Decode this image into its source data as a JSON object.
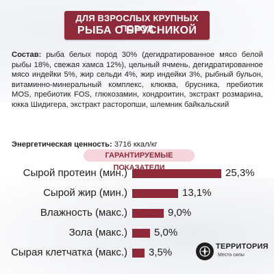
{
  "title": {
    "line1": "Для взрослых крупных пород",
    "line2": "Рыба с брусникой"
  },
  "composition": {
    "label": "Состав:",
    "text": "рыба белых пород 30% (дегидратированное мясо белой рыбы 18%, свежая хамса 12%), цельный ячмень, дегидратированное мясо индейки 5%, жир сельди 4%, жир индейки 3%, рыбный бульон, витаминно-минеральный комплекс, клюква, брусника, пребиотик MOS, пребиотик FOS, глюкозамин, хондроитин, экстракт розмарина, юкка Шидигера, экстракт расторопши, шлемник байкальский"
  },
  "energy": {
    "label": "Энергетическая ценность:",
    "value": "3716 ккал/кг"
  },
  "section_header": "Гарантируемые показатели",
  "indicators": [
    {
      "label": "Сырой протеин (мин.)",
      "value": "25,3%",
      "percent": 25.3
    },
    {
      "label": "Сырой жир (мин.)",
      "value": "13,1%",
      "percent": 13.1
    },
    {
      "label": "Влажность (макс.)",
      "value": "9,0%",
      "percent": 9.0
    },
    {
      "label": "Зола (макс.)",
      "value": "5,0%",
      "percent": 5.0
    },
    {
      "label": "Сырая клетчатка (макс.)",
      "value": "3,5%",
      "percent": 3.5
    }
  ],
  "logo": {
    "name": "ТерриториЯ",
    "tagline": "Место силы"
  },
  "colors": {
    "accent": "#8e2a3a",
    "header_pill": "#f4d6dc"
  }
}
